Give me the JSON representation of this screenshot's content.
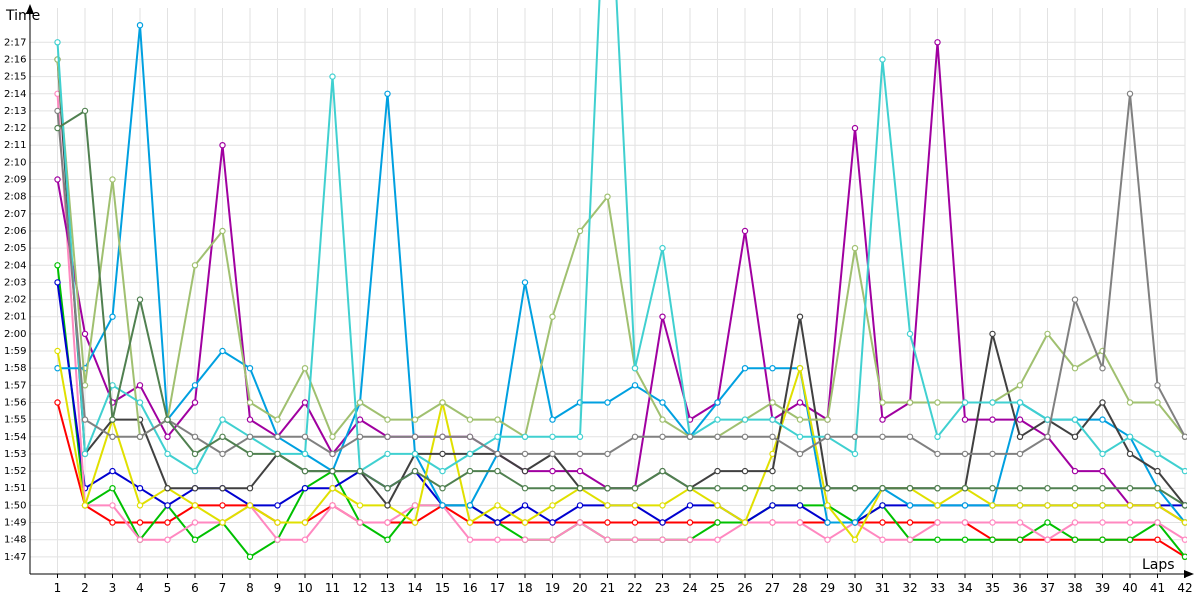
{
  "chart_data": {
    "type": "line",
    "xlabel": "Laps",
    "ylabel": "Time",
    "x": [
      1,
      2,
      3,
      4,
      5,
      6,
      7,
      8,
      9,
      10,
      11,
      12,
      13,
      14,
      15,
      16,
      17,
      18,
      19,
      20,
      21,
      22,
      23,
      24,
      25,
      26,
      27,
      28,
      29,
      30,
      31,
      32,
      33,
      34,
      35,
      36,
      37,
      38,
      39,
      40,
      41,
      42
    ],
    "xlim": [
      0,
      42
    ],
    "ylim": [
      "1:46",
      "2:19"
    ],
    "y_ticks": [
      "1:47",
      "1:48",
      "1:49",
      "1:50",
      "1:51",
      "1:52",
      "1:53",
      "1:54",
      "1:55",
      "1:56",
      "1:57",
      "1:58",
      "1:59",
      "2:00",
      "2:01",
      "2:02",
      "2:03",
      "2:04",
      "2:05",
      "2:06",
      "2:07",
      "2:08",
      "2:09",
      "2:10",
      "2:11",
      "2:12",
      "2:13",
      "2:14",
      "2:15",
      "2:16",
      "2:17"
    ],
    "grid": true,
    "series": [
      {
        "color": "#ff0000",
        "values": [
          "1:56",
          "1:50",
          "1:49",
          "1:49",
          "1:49",
          "1:50",
          "1:50",
          "1:50",
          "1:49",
          "1:49",
          "1:50",
          "1:49",
          "1:49",
          "1:49",
          "1:50",
          "1:49",
          "1:49",
          "1:49",
          "1:49",
          "1:49",
          "1:49",
          "1:49",
          "1:49",
          "1:49",
          "1:49",
          "1:49",
          "1:49",
          "1:49",
          "1:49",
          "1:49",
          "1:49",
          "1:49",
          "1:49",
          "1:49",
          "1:48",
          "1:48",
          "1:48",
          "1:48",
          "1:48",
          "1:48",
          "1:48",
          "1:47"
        ]
      },
      {
        "color": "#00c000",
        "values": [
          "2:04",
          "1:50",
          "1:51",
          "1:48",
          "1:50",
          "1:48",
          "1:49",
          "1:47",
          "1:48",
          "1:51",
          "1:52",
          "1:49",
          "1:48",
          "1:50",
          "1:50",
          "1:50",
          "1:49",
          "1:48",
          "1:48",
          "1:49",
          "1:48",
          "1:48",
          "1:48",
          "1:48",
          "1:49",
          "1:49",
          "1:50",
          "1:50",
          "1:50",
          "1:49",
          "1:50",
          "1:48",
          "1:48",
          "1:48",
          "1:48",
          "1:48",
          "1:49",
          "1:48",
          "1:48",
          "1:48",
          "1:49",
          "1:47"
        ]
      },
      {
        "color": "#0000d0",
        "values": [
          "2:03",
          "1:51",
          "1:52",
          "1:51",
          "1:50",
          "1:51",
          "1:51",
          "1:50",
          "1:50",
          "1:51",
          "1:51",
          "1:52",
          "1:51",
          "1:52",
          "1:50",
          "1:50",
          "1:49",
          "1:50",
          "1:49",
          "1:50",
          "1:50",
          "1:50",
          "1:49",
          "1:50",
          "1:50",
          "1:49",
          "1:50",
          "1:50",
          "1:49",
          "1:49",
          "1:50",
          "1:50",
          "1:50",
          "1:50",
          "1:50",
          "1:50",
          "1:50",
          "1:50",
          "1:50",
          "1:50",
          "1:50",
          "1:50"
        ]
      },
      {
        "color": "#ff88c0",
        "values": [
          "2:14",
          "1:50",
          "1:50",
          "1:48",
          "1:48",
          "1:49",
          "1:49",
          "1:50",
          "1:48",
          "1:48",
          "1:50",
          "1:49",
          "1:49",
          "1:50",
          "1:50",
          "1:48",
          "1:48",
          "1:48",
          "1:48",
          "1:49",
          "1:48",
          "1:48",
          "1:48",
          "1:48",
          "1:48",
          "1:49",
          "1:49",
          "1:49",
          "1:48",
          "1:49",
          "1:48",
          "1:48",
          "1:49",
          "1:49",
          "1:49",
          "1:49",
          "1:48",
          "1:49",
          "1:49",
          "1:49",
          "1:49",
          "1:48"
        ]
      },
      {
        "color": "#a000a0",
        "values": [
          "2:09",
          "2:00",
          "1:56",
          "1:57",
          "1:54",
          "1:56",
          "2:11",
          "1:55",
          "1:54",
          "1:56",
          "1:53",
          "1:55",
          "1:54",
          "1:54",
          "1:54",
          "1:54",
          "1:53",
          "1:52",
          "1:52",
          "1:52",
          "1:51",
          "1:51",
          "2:01",
          "1:55",
          "1:56",
          "2:06",
          "1:55",
          "1:56",
          "1:55",
          "2:12",
          "1:55",
          "1:56",
          "2:17",
          "1:55",
          "1:55",
          "1:55",
          "1:54",
          "1:52",
          "1:52",
          "1:50",
          "1:50",
          "1:49"
        ]
      },
      {
        "color": "#00a0e0",
        "values": [
          "1:58",
          "1:58",
          "2:01",
          "2:18",
          "1:55",
          "1:57",
          "1:59",
          "1:58",
          "1:54",
          "1:53",
          "1:52",
          "1:56",
          "2:14",
          "1:53",
          "1:50",
          "1:50",
          "1:53",
          "2:03",
          "1:55",
          "1:56",
          "1:56",
          "1:57",
          "1:56",
          "1:54",
          "1:56",
          "1:58",
          "1:58",
          "1:58",
          "1:49",
          "1:49",
          "1:51",
          "1:50",
          "1:50",
          "1:50",
          "1:50",
          "1:56",
          "1:55",
          "1:55",
          "1:55",
          "1:54",
          "1:51",
          "1:49"
        ]
      },
      {
        "color": "#e0e000",
        "values": [
          "1:59",
          "1:50",
          "1:55",
          "1:50",
          "1:51",
          "1:50",
          "1:49",
          "1:50",
          "1:49",
          "1:49",
          "1:51",
          "1:50",
          "1:50",
          "1:49",
          "1:56",
          "1:49",
          "1:50",
          "1:49",
          "1:50",
          "1:51",
          "1:50",
          "1:50",
          "1:50",
          "1:51",
          "1:50",
          "1:49",
          "1:53",
          "1:58",
          "1:50",
          "1:48",
          "1:51",
          "1:51",
          "1:50",
          "1:51",
          "1:50",
          "1:50",
          "1:50",
          "1:50",
          "1:50",
          "1:50",
          "1:50",
          "1:49"
        ]
      },
      {
        "color": "#404040",
        "values": [
          "2:16",
          "1:53",
          "1:55",
          "1:55",
          "1:51",
          "1:51",
          "1:51",
          "1:51",
          "1:53",
          "1:52",
          "1:52",
          "1:52",
          "1:50",
          "1:53",
          "1:53",
          "1:53",
          "1:53",
          "1:52",
          "1:53",
          "1:51",
          "1:51",
          "1:51",
          "1:52",
          "1:51",
          "1:52",
          "1:52",
          "1:52",
          "2:01",
          "1:51",
          "1:51",
          "1:51",
          "1:51",
          "1:51",
          "1:51",
          "2:00",
          "1:54",
          "1:55",
          "1:54",
          "1:56",
          "1:53",
          "1:52",
          "1:50"
        ]
      },
      {
        "color": "#a0c070",
        "values": [
          "2:16",
          "1:57",
          "2:09",
          "1:54",
          "1:55",
          "2:04",
          "2:06",
          "1:56",
          "1:55",
          "1:58",
          "1:54",
          "1:56",
          "1:55",
          "1:55",
          "1:56",
          "1:55",
          "1:55",
          "1:54",
          "2:01",
          "2:06",
          "2:08",
          "1:58",
          "1:55",
          "1:54",
          "1:54",
          "1:55",
          "1:56",
          "1:55",
          "1:55",
          "2:05",
          "1:56",
          "1:56",
          "1:56",
          "1:56",
          "1:56",
          "1:57",
          "2:00",
          "1:58",
          "1:59",
          "1:56",
          "1:56",
          "1:54"
        ]
      },
      {
        "color": "#40d0d0",
        "values": [
          "2:17",
          "1:53",
          "1:57",
          "1:56",
          "1:53",
          "1:52",
          "1:55",
          "1:54",
          "1:53",
          "1:53",
          "2:15",
          "1:52",
          "1:53",
          "1:53",
          "1:52",
          "1:53",
          "1:54",
          "1:54",
          "1:54",
          "1:54",
          "2:30",
          "1:58",
          "2:05",
          "1:54",
          "1:55",
          "1:55",
          "1:55",
          "1:54",
          "1:54",
          "1:53",
          "2:16",
          "2:00",
          "1:54",
          "1:56",
          "1:56",
          "1:56",
          "1:55",
          "1:55",
          "1:53",
          "1:54",
          "1:53",
          "1:52"
        ]
      },
      {
        "color": "#808080",
        "values": [
          "2:13",
          "1:55",
          "1:54",
          "1:54",
          "1:55",
          "1:54",
          "1:53",
          "1:54",
          "1:54",
          "1:54",
          "1:53",
          "1:54",
          "1:54",
          "1:54",
          "1:54",
          "1:54",
          "1:53",
          "1:53",
          "1:53",
          "1:53",
          "1:53",
          "1:54",
          "1:54",
          "1:54",
          "1:54",
          "1:54",
          "1:54",
          "1:53",
          "1:54",
          "1:54",
          "1:54",
          "1:54",
          "1:53",
          "1:53",
          "1:53",
          "1:53",
          "1:54",
          "2:02",
          "1:58",
          "2:14",
          "1:57",
          "1:54"
        ]
      },
      {
        "color": "#508050",
        "values": [
          "2:12",
          "2:13",
          "1:55",
          "2:02",
          "1:55",
          "1:53",
          "1:54",
          "1:53",
          "1:53",
          "1:52",
          "1:52",
          "1:52",
          "1:51",
          "1:52",
          "1:51",
          "1:52",
          "1:52",
          "1:51",
          "1:51",
          "1:51",
          "1:51",
          "1:51",
          "1:52",
          "1:51",
          "1:51",
          "1:51",
          "1:51",
          "1:51",
          "1:51",
          "1:51",
          "1:51",
          "1:51",
          "1:51",
          "1:51",
          "1:51",
          "1:51",
          "1:51",
          "1:51",
          "1:51",
          "1:51",
          "1:51",
          "1:50"
        ]
      }
    ]
  }
}
